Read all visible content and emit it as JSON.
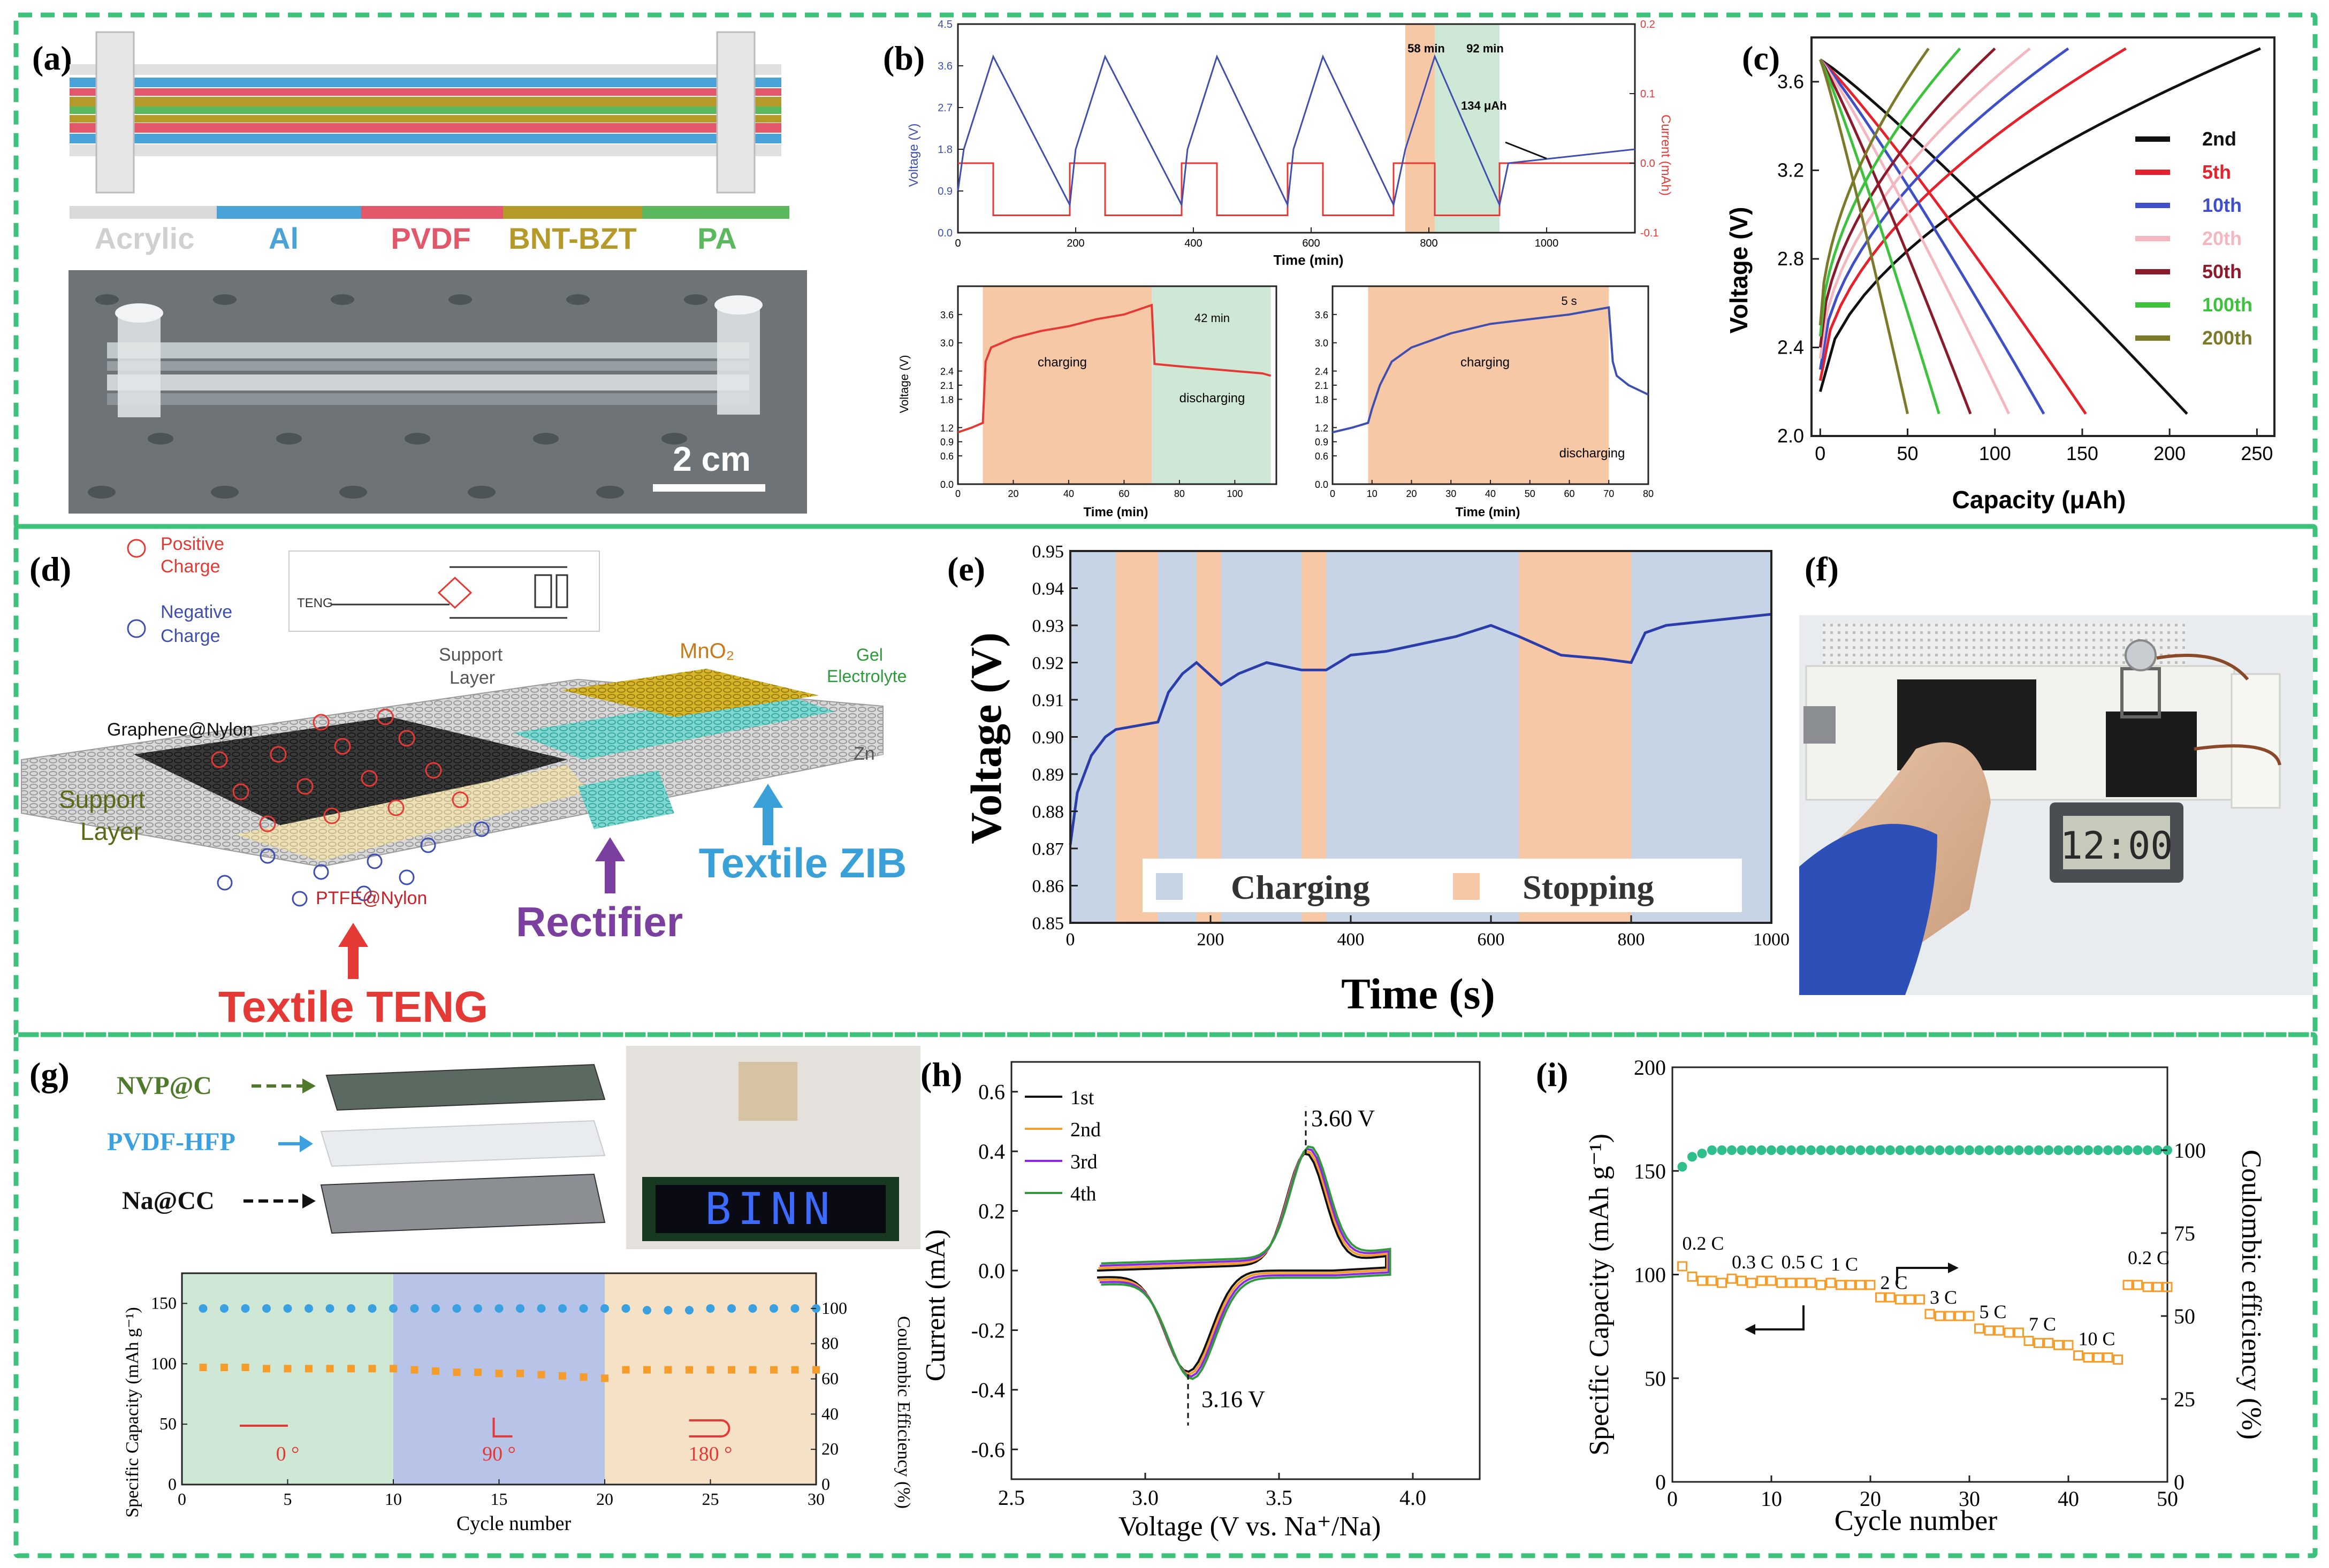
{
  "colors": {
    "frame": "#3cc27a",
    "orange_band": "#f7c8a6",
    "blue_band": "#c6d4e6",
    "green_band": "#cfe8d6",
    "red": "#e53935",
    "blue": "#3f4fb0",
    "navy": "#2b3da8",
    "orange": "#f59c2a",
    "teal": "#2fbf8a",
    "purple": "#7b3fa0",
    "skyblue": "#3aa0d8"
  },
  "panels": {
    "a": {
      "label": "(a)",
      "layers": [
        "Acrylic",
        "Al",
        "PVDF",
        "BNT-BZT",
        "PA"
      ],
      "layer_colors": [
        "#d9d9d9",
        "#4aa3d8",
        "#e2586a",
        "#b59a2a",
        "#5cb85c"
      ],
      "scale": "2 cm"
    },
    "b": {
      "label": "(b)",
      "top_ylabel": "Voltage (V)",
      "top_y2label": "Current (mAh)",
      "top_xlabel": "Time (min)",
      "top_xticks": [
        "0",
        "200",
        "400",
        "600",
        "800",
        "1000"
      ],
      "top_yticks": [
        "0.0",
        "0.9",
        "1.8",
        "2.7",
        "3.6",
        "4.5"
      ],
      "top_y2ticks": [
        "-0.1",
        "0.0",
        "0.1",
        "0.2"
      ],
      "ann_58": "58 min",
      "ann_92": "92 min",
      "ann_134": "134 μAh",
      "bl_ylabel": "Voltage (V)",
      "bl_xlabel": "Time (min)",
      "bl_xticks": [
        "0",
        "20",
        "40",
        "60",
        "80",
        "100"
      ],
      "b_yticks": [
        "0.0",
        "0.6",
        "0.9",
        "1.2",
        "1.8",
        "2.1",
        "2.4",
        "3.0",
        "3.6"
      ],
      "bl_charging": "charging",
      "bl_discharging": "discharging",
      "bl_ann": "42 min",
      "br_xlabel": "Time (min)",
      "br_xticks": [
        "0",
        "10",
        "20",
        "30",
        "40",
        "50",
        "60",
        "70",
        "80"
      ],
      "br_charging": "charging",
      "br_discharging": "discharging",
      "br_ann": "5 s"
    },
    "c": {
      "label": "(c)",
      "ylabel": "Voltage (V)",
      "xlabel": "Capacity (μAh)",
      "xticks": [
        "0",
        "50",
        "100",
        "150",
        "200",
        "250"
      ],
      "yticks": [
        "2.0",
        "2.4",
        "2.8",
        "3.2",
        "3.6"
      ]
    },
    "d": {
      "label": "(d)",
      "positive": "Positive",
      "positive2": "Charge",
      "negative": "Negative",
      "negative2": "Charge",
      "teng_small": "TENG",
      "support_top": "Support",
      "support_top2": "Layer",
      "mno2": "MnO₂",
      "gel": "Gel",
      "gel2": "Electrolyte",
      "zn": "Zn",
      "graphene": "Graphene@Nylon",
      "support_left": "Support",
      "support_left2": "Layer",
      "ptfe": "PTFE@Nylon",
      "rectifier": "Rectifier",
      "zib": "Textile ZIB",
      "teng": "Textile TENG"
    },
    "e": {
      "label": "(e)",
      "legend_charging": "Charging",
      "legend_stopping": "Stopping"
    },
    "f": {
      "label": "(f)",
      "clock": "12:00"
    },
    "g": {
      "label": "(g)",
      "nvp": "NVP@C",
      "pvdf": "PVDF-HFP",
      "na": "Na@CC",
      "led": "BINN",
      "ylabel": "Specific Capacity (mAh g⁻¹)",
      "y2label": "Coulombic Efficiency (%)",
      "xlabel": "Cycle number",
      "xticks": [
        "0",
        "5",
        "10",
        "15",
        "20",
        "25",
        "30"
      ],
      "yticks": [
        "0",
        "50",
        "100",
        "150"
      ],
      "y2ticks": [
        "0",
        "20",
        "40",
        "60",
        "80",
        "100"
      ],
      "bend0": "0 °",
      "bend90": "90 °",
      "bend180": "180 °"
    },
    "h": {
      "label": "(h)",
      "ylabel": "Current (mA)",
      "xlabel": "Voltage (V vs. Na⁺/Na)",
      "xticks": [
        "2.5",
        "3.0",
        "3.5",
        "4.0"
      ],
      "yticks": [
        "-0.6",
        "-0.4",
        "-0.2",
        "0.0",
        "0.2",
        "0.4",
        "0.6"
      ],
      "ann_peak": "3.60 V",
      "ann_valley": "3.16 V",
      "legend": [
        "1st",
        "2nd",
        "3rd",
        "4th"
      ]
    },
    "i": {
      "label": "(i)",
      "ylabel": "Specific Capacity (mAh g⁻¹)",
      "y2label": "Coulombic efficiency (%)",
      "xlabel": "Cycle number",
      "xticks": [
        "0",
        "10",
        "20",
        "30",
        "40",
        "50"
      ],
      "yticks": [
        "0",
        "50",
        "100",
        "150",
        "200"
      ],
      "y2ticks": [
        "0",
        "25",
        "50",
        "75",
        "100"
      ],
      "rates": [
        "0.2 C",
        "0.3 C",
        "0.5 C",
        "1 C",
        "2 C",
        "3 C",
        "5 C",
        "7 C",
        "10 C",
        "0.2 C"
      ]
    }
  },
  "chart_data": [
    {
      "id": "b-top",
      "type": "line",
      "title": "",
      "xlabel": "Time (min)",
      "ylabel": "Voltage (V)",
      "y2label": "Current (mAh)",
      "xlim": [
        0,
        1150
      ],
      "ylim": [
        0,
        4.5
      ],
      "y2lim": [
        -0.1,
        0.2
      ],
      "series": [
        {
          "name": "Voltage",
          "x": [
            0,
            10,
            60,
            190,
            200,
            250,
            380,
            390,
            440,
            560,
            570,
            620,
            740,
            760,
            810,
            920,
            935,
            1150
          ],
          "y": [
            0.9,
            1.8,
            3.8,
            0.6,
            1.8,
            3.8,
            0.6,
            1.8,
            3.8,
            0.6,
            1.8,
            3.8,
            0.6,
            1.8,
            3.8,
            0.6,
            1.5,
            1.8
          ]
        },
        {
          "name": "Current",
          "x": [
            0,
            60,
            60,
            190,
            190,
            250,
            250,
            380,
            380,
            440,
            440,
            560,
            560,
            620,
            620,
            740,
            740,
            810,
            810,
            920,
            920,
            1150
          ],
          "y": [
            0,
            0,
            -0.075,
            -0.075,
            0,
            0,
            -0.075,
            -0.075,
            0,
            0,
            -0.075,
            -0.075,
            0,
            0,
            -0.075,
            -0.075,
            0,
            0,
            -0.075,
            -0.075,
            0,
            0
          ]
        }
      ],
      "annotations": [
        "58 min",
        "92 min",
        "134 μAh"
      ]
    },
    {
      "id": "b-bottom-left",
      "type": "line",
      "xlabel": "Time (min)",
      "ylabel": "Voltage (V)",
      "xlim": [
        0,
        115
      ],
      "ylim": [
        0,
        4.2
      ],
      "x": [
        0,
        5,
        9,
        10,
        12,
        20,
        30,
        40,
        50,
        60,
        70,
        71,
        80,
        90,
        100,
        110,
        113
      ],
      "y": [
        1.1,
        1.2,
        1.3,
        2.6,
        2.9,
        3.1,
        3.25,
        3.35,
        3.5,
        3.6,
        3.8,
        2.55,
        2.5,
        2.45,
        2.4,
        2.35,
        2.3
      ],
      "annotations": [
        "charging",
        "discharging",
        "42 min"
      ]
    },
    {
      "id": "b-bottom-right",
      "type": "line",
      "xlabel": "Time (min)",
      "ylabel": "Voltage (V)",
      "xlim": [
        0,
        80
      ],
      "ylim": [
        0,
        4.2
      ],
      "x": [
        0,
        5,
        9,
        10,
        12,
        15,
        20,
        30,
        40,
        50,
        60,
        70,
        71,
        72,
        75,
        80
      ],
      "y": [
        1.1,
        1.2,
        1.3,
        1.6,
        2.1,
        2.6,
        2.9,
        3.2,
        3.4,
        3.5,
        3.6,
        3.75,
        2.6,
        2.3,
        2.1,
        1.9
      ],
      "annotations": [
        "charging",
        "discharging",
        "5 s"
      ]
    },
    {
      "id": "c",
      "type": "line",
      "xlabel": "Capacity (μAh)",
      "ylabel": "Voltage (V)",
      "xlim": [
        -5,
        260
      ],
      "ylim": [
        2.0,
        3.8
      ],
      "legend": [
        "2nd",
        "5th",
        "10th",
        "20th",
        "50th",
        "100th",
        "200th"
      ],
      "series": [
        {
          "name": "2nd",
          "charge_capacity": 252,
          "discharge_capacity": 210,
          "color": "#111111"
        },
        {
          "name": "5th",
          "charge_capacity": 175,
          "discharge_capacity": 152,
          "color": "#e5212b"
        },
        {
          "name": "10th",
          "charge_capacity": 142,
          "discharge_capacity": 128,
          "color": "#3f4fc8"
        },
        {
          "name": "20th",
          "charge_capacity": 120,
          "discharge_capacity": 108,
          "color": "#f4b7c0"
        },
        {
          "name": "50th",
          "charge_capacity": 100,
          "discharge_capacity": 86,
          "color": "#8b1a2b"
        },
        {
          "name": "100th",
          "charge_capacity": 80,
          "discharge_capacity": 68,
          "color": "#3cc23c"
        },
        {
          "name": "200th",
          "charge_capacity": 62,
          "discharge_capacity": 50,
          "color": "#7a7a2a"
        }
      ]
    },
    {
      "id": "e",
      "type": "line",
      "xlabel": "Time (s)",
      "ylabel": "Voltage (V)",
      "xlim": [
        0,
        1000
      ],
      "ylim": [
        0.85,
        0.95
      ],
      "xticks": [
        0,
        200,
        400,
        600,
        800,
        1000
      ],
      "yticks": [
        0.85,
        0.86,
        0.87,
        0.88,
        0.89,
        0.9,
        0.91,
        0.92,
        0.93,
        0.94,
        0.95
      ],
      "stopping_intervals": [
        [
          65,
          125
        ],
        [
          180,
          215
        ],
        [
          330,
          365
        ],
        [
          640,
          800
        ]
      ],
      "x": [
        0,
        10,
        30,
        50,
        65,
        125,
        140,
        160,
        180,
        215,
        240,
        280,
        330,
        365,
        400,
        450,
        500,
        550,
        600,
        640,
        700,
        760,
        800,
        820,
        850,
        900,
        950,
        1000
      ],
      "y": [
        0.871,
        0.885,
        0.895,
        0.9,
        0.902,
        0.904,
        0.912,
        0.917,
        0.92,
        0.914,
        0.917,
        0.92,
        0.918,
        0.918,
        0.922,
        0.923,
        0.925,
        0.927,
        0.93,
        0.927,
        0.922,
        0.921,
        0.92,
        0.928,
        0.93,
        0.931,
        0.932,
        0.933
      ],
      "legend": [
        "Charging",
        "Stopping"
      ]
    },
    {
      "id": "g",
      "type": "scatter",
      "xlabel": "Cycle number",
      "ylabel": "Specific Capacity (mAh g-1)",
      "y2label": "Coulombic Efficiency (%)",
      "xlim": [
        0,
        30
      ],
      "ylim": [
        0,
        175
      ],
      "y2lim": [
        0,
        120
      ],
      "bending_regions": [
        "0 °",
        "90 °",
        "180 °"
      ],
      "capacity": [
        97,
        97,
        97,
        96,
        96,
        96,
        96,
        96,
        96,
        96,
        95,
        94,
        93,
        93,
        92,
        92,
        91,
        90,
        89,
        88,
        95,
        95,
        95,
        95,
        95,
        95,
        95,
        95,
        95,
        95
      ],
      "efficiency": [
        100,
        100,
        100,
        100,
        100,
        100,
        100,
        100,
        100,
        100,
        100,
        100,
        100,
        100,
        100,
        100,
        100,
        100,
        100,
        100,
        100,
        99,
        99,
        99,
        100,
        100,
        100,
        100,
        100,
        100
      ]
    },
    {
      "id": "h",
      "type": "line",
      "xlabel": "Voltage (V vs. Na+/Na)",
      "ylabel": "Current (mA)",
      "xlim": [
        2.5,
        4.25
      ],
      "ylim": [
        -0.7,
        0.7
      ],
      "legend": [
        "1st",
        "2nd",
        "3rd",
        "4th"
      ],
      "annotations": [
        "3.60 V",
        "3.16 V"
      ],
      "peak_anodic": [
        3.6,
        0.37
      ],
      "peak_cathodic": [
        3.16,
        -0.33
      ]
    },
    {
      "id": "i",
      "type": "scatter",
      "xlabel": "Cycle number",
      "ylabel": "Specific Capacity (mAh g-1)",
      "y2label": "Coulombic efficiency (%)",
      "xlim": [
        0,
        50
      ],
      "ylim": [
        0,
        200
      ],
      "y2lim": [
        0,
        125
      ],
      "rates": [
        "0.2 C",
        "0.3 C",
        "0.5 C",
        "1 C",
        "2 C",
        "3 C",
        "5 C",
        "7 C",
        "10 C",
        "0.2 C"
      ],
      "capacity": [
        104,
        99,
        97,
        97,
        96,
        98,
        97,
        96,
        97,
        97,
        96,
        96,
        96,
        96,
        95,
        96,
        95,
        95,
        95,
        95,
        89,
        89,
        88,
        88,
        88,
        81,
        80,
        80,
        80,
        80,
        74,
        73,
        73,
        72,
        72,
        68,
        67,
        67,
        66,
        66,
        61,
        60,
        60,
        60,
        59,
        95,
        95,
        94,
        94,
        94
      ],
      "efficiency": [
        95,
        98,
        99,
        100,
        100,
        100,
        100,
        100,
        100,
        100,
        100,
        100,
        100,
        100,
        100,
        100,
        100,
        100,
        100,
        100,
        100,
        100,
        100,
        100,
        100,
        100,
        100,
        100,
        100,
        100,
        100,
        100,
        100,
        100,
        100,
        100,
        100,
        100,
        100,
        100,
        100,
        100,
        100,
        100,
        100,
        100,
        100,
        100,
        100,
        100
      ]
    }
  ]
}
